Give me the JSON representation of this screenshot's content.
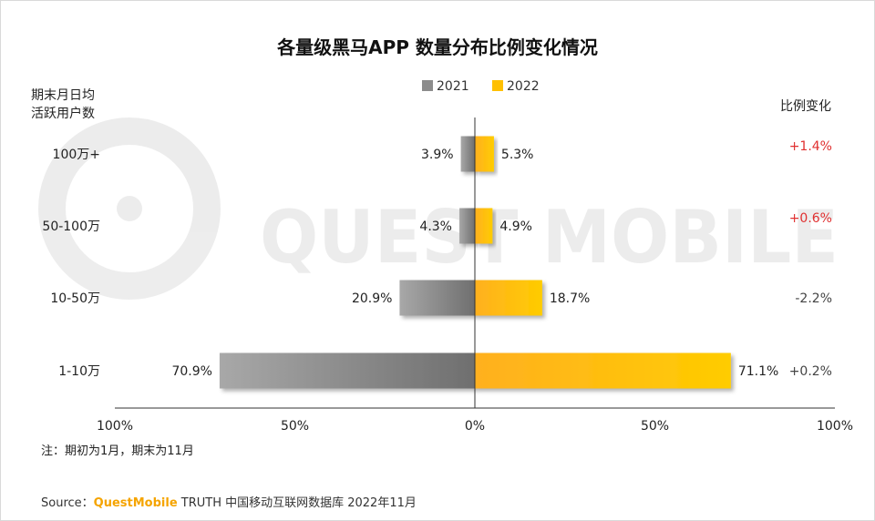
{
  "chart_data": {
    "type": "bar",
    "orientation": "horizontal-diverging",
    "title": "各量级黑马APP 数量分布比例变化情况",
    "ylabel": "期末月日均活跃用户数",
    "ylabel_lines": [
      "期末月日均",
      "活跃用户数"
    ],
    "categories": [
      "100万+",
      "50-100万",
      "10-50万",
      "1-10万"
    ],
    "series": [
      {
        "name": "2021",
        "values": [
          3.9,
          4.3,
          20.9,
          70.9
        ],
        "labels": [
          "3.9%",
          "4.3%",
          "20.9%",
          "70.9%"
        ],
        "side": "left"
      },
      {
        "name": "2022",
        "values": [
          5.3,
          4.9,
          18.7,
          71.1
        ],
        "labels": [
          "5.3%",
          "4.9%",
          "18.7%",
          "71.1%"
        ],
        "side": "right"
      }
    ],
    "change_header": "比例变化",
    "changes": [
      "+1.4%",
      "+0.6%",
      "-2.2%",
      "+0.2%"
    ],
    "xlim": [
      -100,
      100
    ],
    "xticks": [
      "100%",
      "50%",
      "0%",
      "50%",
      "100%"
    ],
    "watermark": "QUEST MOBILE"
  },
  "colors": {
    "series_2021": "#8c8c8c",
    "series_2021_dark": "#6f6f6f",
    "series_2021_light": "#a8a8a8",
    "series_2022": "#ffc000",
    "series_2022_dark": "#ffb020",
    "series_2022_light": "#ffcc00",
    "positive": "#e03030",
    "neutral": "#444444",
    "brand": "#f5a400"
  },
  "note": "注：期初为1月，期末为11月",
  "source": {
    "prefix": "Source：",
    "brand": "QuestMobile",
    "suffix": " TRUTH 中国移动互联网数据库 2022年11月"
  }
}
